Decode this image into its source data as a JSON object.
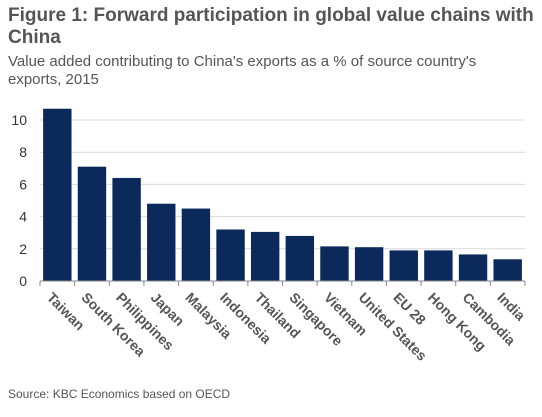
{
  "title": "Figure 1: Forward participation in global value chains with China",
  "subtitle": "Value added contributing to China's exports as a % of source country's exports, 2015",
  "source": "Source: KBC Economics based on OECD",
  "colors": {
    "bar": "#0b2a5b",
    "grid": "#d9d9d9",
    "text": "#555555"
  },
  "chart_data": {
    "type": "bar",
    "categories": [
      "Taiwan",
      "South Korea",
      "Philippines",
      "Japan",
      "Malaysia",
      "Indonesia",
      "Thailand",
      "Singapore",
      "Vietnam",
      "United States",
      "EU 28",
      "Hong Kong",
      "Cambodia",
      "India"
    ],
    "values": [
      10.7,
      7.1,
      6.4,
      4.8,
      4.5,
      3.2,
      3.05,
      2.8,
      2.15,
      2.1,
      1.9,
      1.9,
      1.65,
      1.35
    ],
    "ylim": [
      0,
      10
    ],
    "yticks": [
      0,
      2,
      4,
      6,
      8,
      10
    ],
    "grid": true,
    "xlabel": "",
    "ylabel": ""
  }
}
